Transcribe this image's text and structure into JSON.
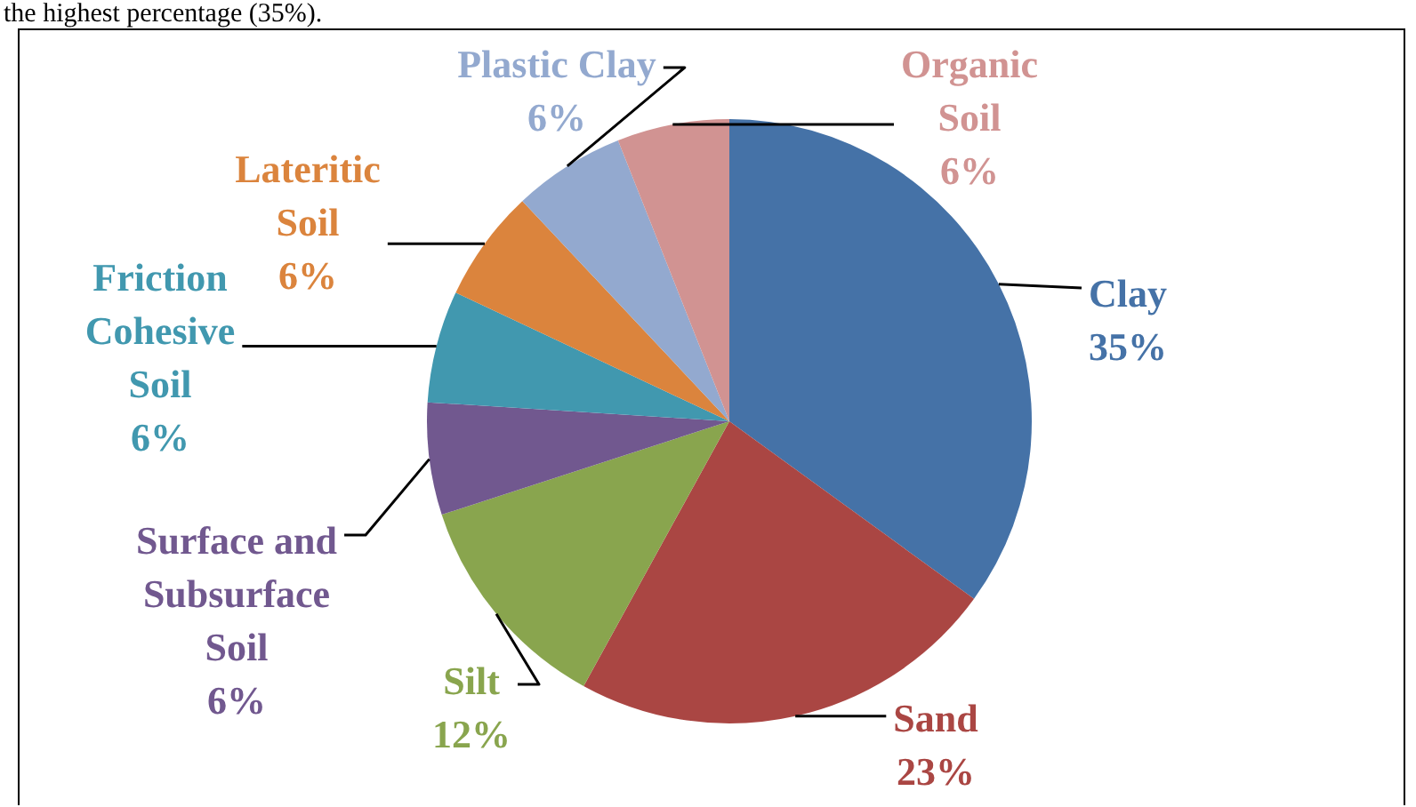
{
  "chart_data": {
    "type": "pie",
    "categories": [
      "Clay",
      "Sand",
      "Silt",
      "Surface and Subsurface Soil",
      "Friction Cohesive Soil",
      "Lateritic Soil",
      "Plastic Clay",
      "Organic Soil"
    ],
    "values": [
      35,
      23,
      12,
      6,
      6,
      6,
      6,
      6
    ],
    "colors": [
      "#4572a7",
      "#aa4643",
      "#89a54e",
      "#71588f",
      "#4198af",
      "#db843d",
      "#93a9cf",
      "#d19392"
    ],
    "value_labels": [
      "35%",
      "23%",
      "12%",
      "6%",
      "6%",
      "6%",
      "6%",
      "6%"
    ],
    "legend": false,
    "annotations": [
      "the highest percentage (35%)."
    ]
  }
}
